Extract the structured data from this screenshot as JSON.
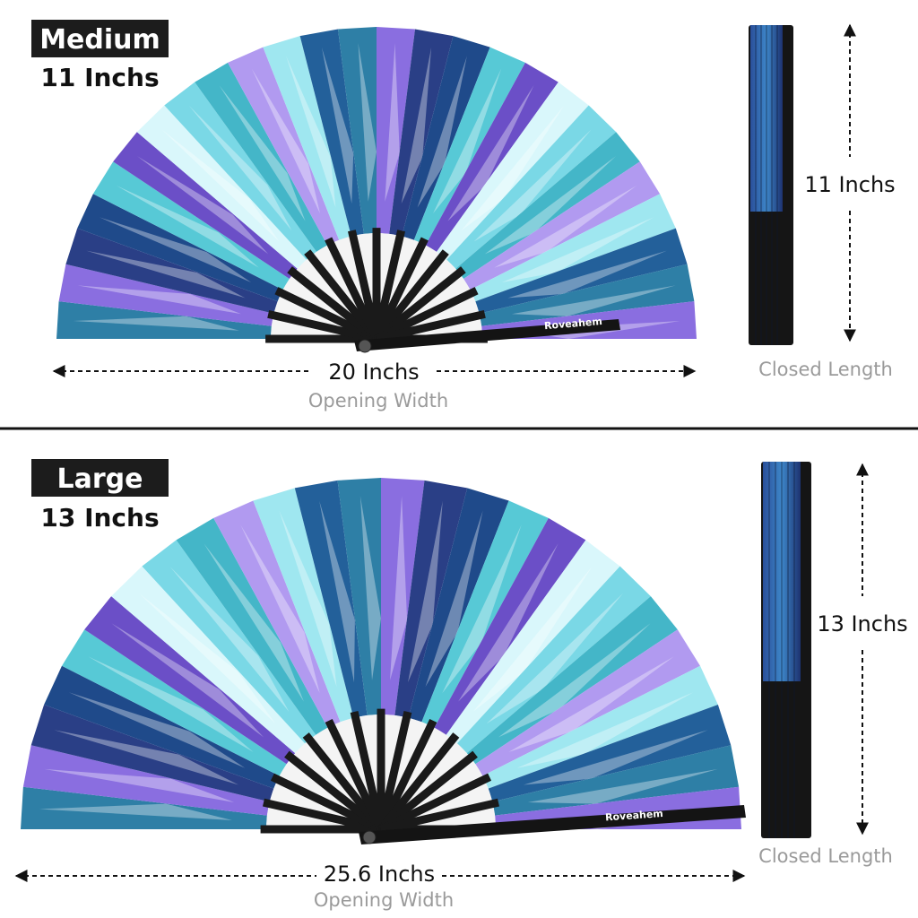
{
  "sections": [
    {
      "badge": "Medium",
      "size": "11 Inchs",
      "opening_width": "20 Inchs",
      "opening_caption": "Opening Width",
      "closed_length": "11 Inchs",
      "closed_caption": "Closed Length",
      "brand": "Roveahem"
    },
    {
      "badge": "Large",
      "size": "13 Inchs",
      "opening_width": "25.6 Inchs",
      "opening_caption": "Opening Width",
      "closed_length": "13 Inchs",
      "closed_caption": "Closed Length",
      "brand": "Roveahem"
    }
  ]
}
